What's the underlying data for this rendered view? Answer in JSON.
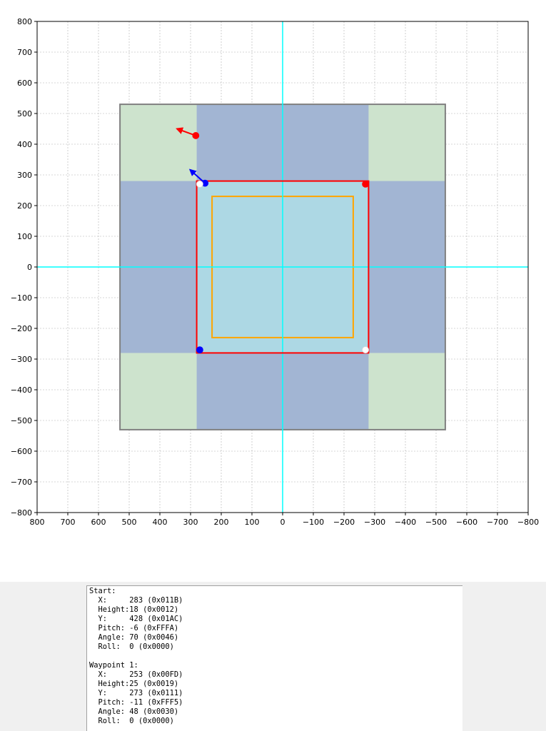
{
  "chart_data": {
    "type": "scatter",
    "title": "",
    "xlabel": "",
    "ylabel": "",
    "xlim": [
      800,
      -800
    ],
    "ylim": [
      -800,
      800
    ],
    "x_ticks": [
      800,
      700,
      600,
      500,
      400,
      300,
      200,
      100,
      0,
      -100,
      -200,
      -300,
      -400,
      -500,
      -600,
      -700,
      -800
    ],
    "y_ticks": [
      800,
      700,
      600,
      500,
      400,
      300,
      200,
      100,
      0,
      -100,
      -200,
      -300,
      -400,
      -500,
      -600,
      -700,
      -800
    ],
    "grid": true,
    "colors": {
      "outer_fill": "#cde3cd",
      "band_fill": "#a2b5d3",
      "center_fill": "#add8e4",
      "outer_border": "#808080",
      "red_rect": "#ff0000",
      "orange_rect": "#ffa500",
      "axis_lines": "#00ffff",
      "red_marker": "#ff0000",
      "blue_marker": "#0000ff",
      "white_marker": "#ffffff"
    },
    "regions": {
      "outer_square": [
        -530,
        530
      ],
      "inner_band": [
        -280,
        280
      ],
      "orange_square": [
        -230,
        230
      ]
    },
    "points": [
      {
        "x": 283,
        "y": 428,
        "color": "red",
        "arrow_angle": 70
      },
      {
        "x": 253,
        "y": 273,
        "color": "blue",
        "arrow_angle": 48
      },
      {
        "x": 270,
        "y": 270,
        "color": "white"
      },
      {
        "x": -270,
        "y": 270,
        "color": "red"
      },
      {
        "x": 270,
        "y": -270,
        "color": "blue"
      },
      {
        "x": -270,
        "y": -270,
        "color": "white"
      }
    ]
  },
  "output": {
    "lines": [
      "Start:",
      "  X:     283 (0x011B)",
      "  Height:18 (0x0012)",
      "  Y:     428 (0x01AC)",
      "  Pitch: -6 (0xFFFA)",
      "  Angle: 70 (0x0046)",
      "  Roll:  0 (0x0000)",
      "",
      "Waypoint 1:",
      "  X:     253 (0x00FD)",
      "  Height:25 (0x0019)",
      "  Y:     273 (0x0111)",
      "  Pitch: -11 (0xFFF5)",
      "  Angle: 48 (0x0030)",
      "  Roll:  0 (0x0000)"
    ]
  }
}
